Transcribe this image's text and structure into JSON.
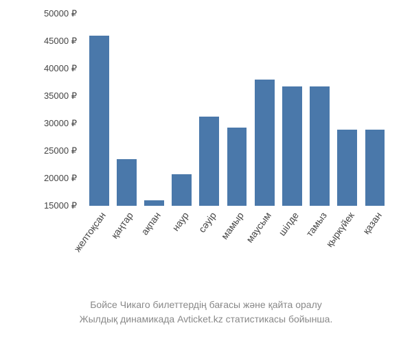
{
  "chart": {
    "type": "bar",
    "ylim": [
      15000,
      50000
    ],
    "ytick_step": 5000,
    "y_suffix": " ₽",
    "categories": [
      "желтоқсан",
      "қаңтар",
      "ақпан",
      "наур",
      "сәуір",
      "мамыр",
      "маусым",
      "шілде",
      "тамыз",
      "қыркүйек",
      "қазан"
    ],
    "values": [
      46000,
      23500,
      16000,
      20800,
      31300,
      29300,
      38000,
      36800,
      36800,
      28900,
      28900
    ],
    "bar_color": "#4a78aa",
    "background_color": "#ffffff",
    "tick_fontsize": 13,
    "label_fontsize": 14,
    "label_rotation_deg": -54,
    "bar_width_ratio": 0.72,
    "axis_color": "#444444"
  },
  "caption": {
    "line1": "Бойсе Чикаго билеттердің бағасы және қайта оралу",
    "line2": "Жылдық динамикада Avticket.kz статистикасы бойынша.",
    "color": "#888888",
    "fontsize": 14
  }
}
